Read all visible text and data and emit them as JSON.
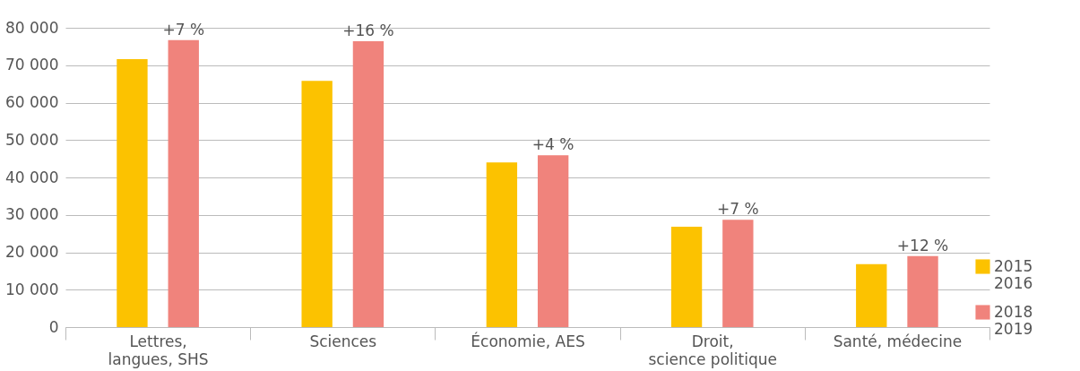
{
  "chart_data": {
    "type": "bar",
    "categories": [
      "Lettres,\nlangues, SHS",
      "Sciences",
      "Économie, AES",
      "Droit,\nscience politique",
      "Santé, médecine"
    ],
    "series": [
      {
        "name": "2015\n2016",
        "color": "#fcc200",
        "values": [
          71600,
          65800,
          44000,
          26800,
          16800
        ]
      },
      {
        "name": "2018\n2019",
        "color": "#f0837c",
        "values": [
          76700,
          76400,
          45900,
          28700,
          19000
        ]
      }
    ],
    "annotations": [
      "+7 %",
      "+16 %",
      "+4 %",
      "+7 %",
      "+12 %"
    ],
    "ylim": [
      0,
      80000
    ],
    "yticks": [
      {
        "value": 0,
        "label": "0"
      },
      {
        "value": 10000,
        "label": "10 000"
      },
      {
        "value": 20000,
        "label": "20 000"
      },
      {
        "value": 30000,
        "label": "30 000"
      },
      {
        "value": 40000,
        "label": "40 000"
      },
      {
        "value": 50000,
        "label": "50 000"
      },
      {
        "value": 60000,
        "label": "60 000"
      },
      {
        "value": 70000,
        "label": "70 000"
      },
      {
        "value": 80000,
        "label": "80 000"
      }
    ],
    "grid": "y",
    "legend": "bottom right"
  }
}
